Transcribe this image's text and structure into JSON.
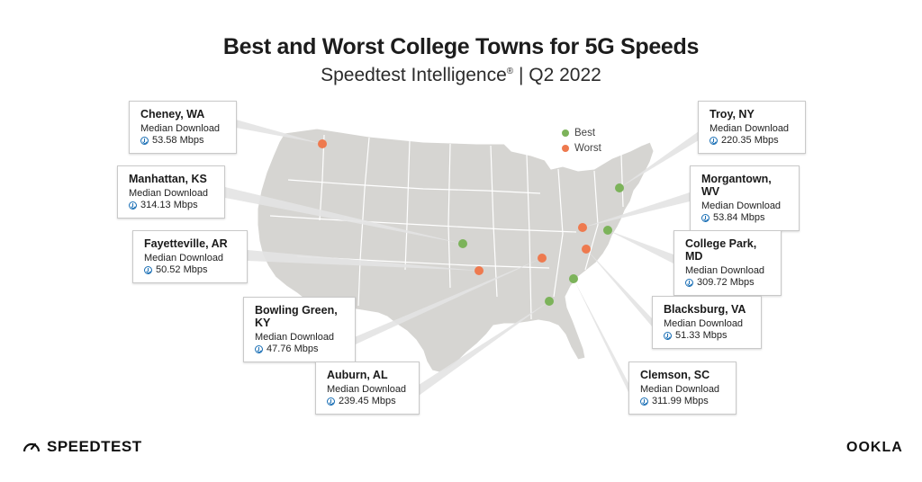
{
  "header": {
    "title": "Best and Worst College Towns for 5G Speeds",
    "subtitle_main": "Speedtest Intelligence",
    "subtitle_mark": "®",
    "subtitle_period": " | Q2 2022"
  },
  "legend": {
    "items": [
      {
        "label": "Best",
        "color": "#7cb35a"
      },
      {
        "label": "Worst",
        "color": "#ee7a4f"
      }
    ]
  },
  "colors": {
    "land": "#d6d5d2",
    "border": "#ffffff",
    "best": "#7cb35a",
    "worst": "#ee7a4f",
    "leader": "#d9d9d9"
  },
  "metric_label": "Median Download",
  "towns": [
    {
      "city": "Cheney, WA",
      "speed": "53.58 Mbps",
      "category": "worst"
    },
    {
      "city": "Manhattan, KS",
      "speed": "314.13 Mbps",
      "category": "best"
    },
    {
      "city": "Fayetteville, AR",
      "speed": "50.52 Mbps",
      "category": "worst"
    },
    {
      "city": "Bowling Green, KY",
      "speed": "47.76 Mbps",
      "category": "worst"
    },
    {
      "city": "Auburn, AL",
      "speed": "239.45 Mbps",
      "category": "best"
    },
    {
      "city": "Troy, NY",
      "speed": "220.35 Mbps",
      "category": "best"
    },
    {
      "city": "Morgantown, WV",
      "speed": "53.84 Mbps",
      "category": "worst"
    },
    {
      "city": "College Park, MD",
      "speed": "309.72 Mbps",
      "category": "best"
    },
    {
      "city": "Blacksburg, VA",
      "speed": "51.33 Mbps",
      "category": "worst"
    },
    {
      "city": "Clemson, SC",
      "speed": "311.99 Mbps",
      "category": "best"
    }
  ],
  "brand": {
    "left": "SPEEDTEST",
    "right": "OOKLA"
  }
}
